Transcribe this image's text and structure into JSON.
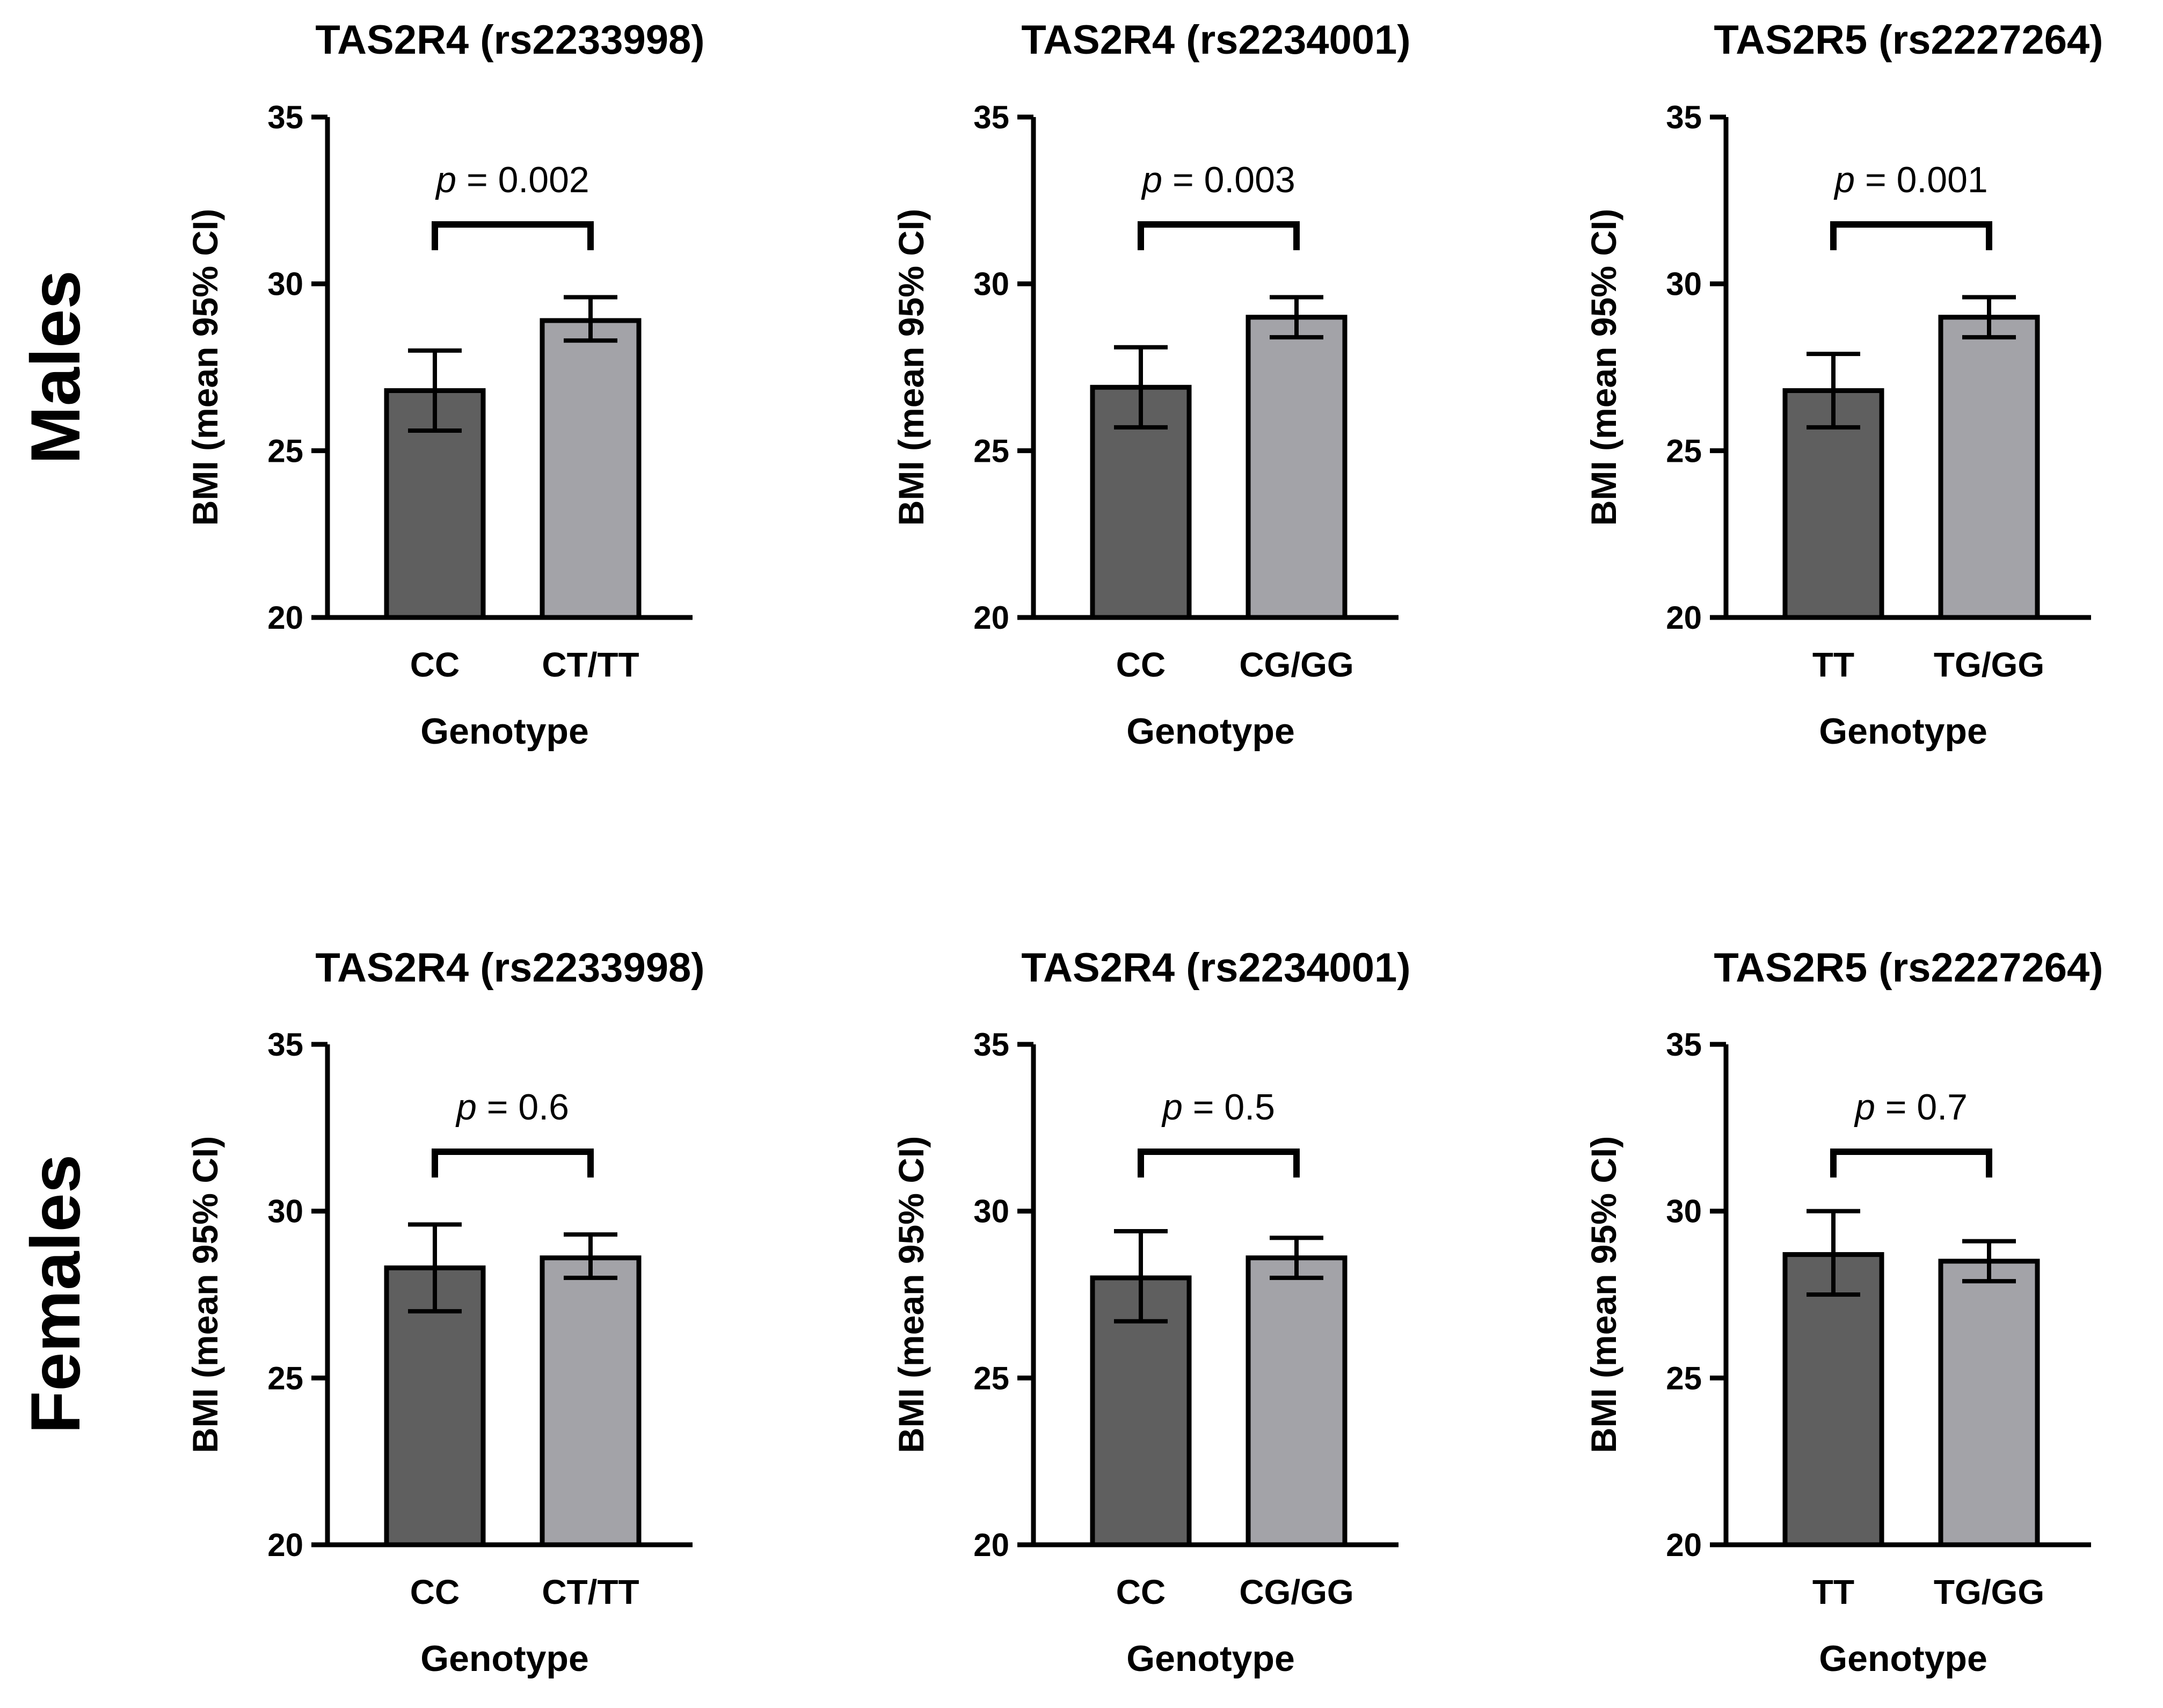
{
  "colors": {
    "bar_dark": "#5f5f5f",
    "bar_light": "#a3a3a8",
    "ink": "#000000"
  },
  "chart_data": [
    {
      "type": "bar",
      "row_label": "Males",
      "title": "TAS2R4 (rs2233998)",
      "xlabel": "Genotype",
      "ylabel": "BMI (mean 95% CI)",
      "ylim": [
        20,
        35
      ],
      "yticks": [
        20,
        25,
        30,
        35
      ],
      "categories": [
        "CC",
        "CT/TT"
      ],
      "values": [
        26.8,
        28.9
      ],
      "ci_low": [
        25.6,
        28.3
      ],
      "ci_high": [
        28.0,
        29.6
      ],
      "p_label": "p",
      "p_text": " = 0.002"
    },
    {
      "type": "bar",
      "row_label": "Males",
      "title": "TAS2R4 (rs2234001)",
      "xlabel": "Genotype",
      "ylabel": "BMI (mean 95% CI)",
      "ylim": [
        20,
        35
      ],
      "yticks": [
        20,
        25,
        30,
        35
      ],
      "categories": [
        "CC",
        "CG/GG"
      ],
      "values": [
        26.9,
        29.0
      ],
      "ci_low": [
        25.7,
        28.4
      ],
      "ci_high": [
        28.1,
        29.6
      ],
      "p_label": "p",
      "p_text": " = 0.003"
    },
    {
      "type": "bar",
      "row_label": "Males",
      "title": "TAS2R5  (rs2227264)",
      "xlabel": "Genotype",
      "ylabel": "BMI (mean 95% CI)",
      "ylim": [
        20,
        35
      ],
      "yticks": [
        20,
        25,
        30,
        35
      ],
      "categories": [
        "TT",
        "TG/GG"
      ],
      "values": [
        26.8,
        29.0
      ],
      "ci_low": [
        25.7,
        28.4
      ],
      "ci_high": [
        27.9,
        29.6
      ],
      "p_label": "p",
      "p_text": " = 0.001"
    },
    {
      "type": "bar",
      "row_label": "Females",
      "title": "TAS2R4 (rs2233998)",
      "xlabel": "Genotype",
      "ylabel": "BMI (mean 95% CI)",
      "ylim": [
        20,
        35
      ],
      "yticks": [
        20,
        25,
        30,
        35
      ],
      "categories": [
        "CC",
        "CT/TT"
      ],
      "values": [
        28.3,
        28.6
      ],
      "ci_low": [
        27.0,
        28.0
      ],
      "ci_high": [
        29.6,
        29.3
      ],
      "p_label": "p",
      "p_text": " = 0.6"
    },
    {
      "type": "bar",
      "row_label": "Females",
      "title": "TAS2R4 (rs2234001)",
      "xlabel": "Genotype",
      "ylabel": "BMI (mean 95% CI)",
      "ylim": [
        20,
        35
      ],
      "yticks": [
        20,
        25,
        30,
        35
      ],
      "categories": [
        "CC",
        "CG/GG"
      ],
      "values": [
        28.0,
        28.6
      ],
      "ci_low": [
        26.7,
        28.0
      ],
      "ci_high": [
        29.4,
        29.2
      ],
      "p_label": "p",
      "p_text": " = 0.5"
    },
    {
      "type": "bar",
      "row_label": "Females",
      "title": "TAS2R5 (rs2227264)",
      "xlabel": "Genotype",
      "ylabel": "BMI (mean 95% CI)",
      "ylim": [
        20,
        35
      ],
      "yticks": [
        20,
        25,
        30,
        35
      ],
      "categories": [
        "TT",
        "TG/GG"
      ],
      "values": [
        28.7,
        28.5
      ],
      "ci_low": [
        27.5,
        27.9
      ],
      "ci_high": [
        30.0,
        29.1
      ],
      "p_label": "p",
      "p_text": " = 0.7"
    }
  ]
}
